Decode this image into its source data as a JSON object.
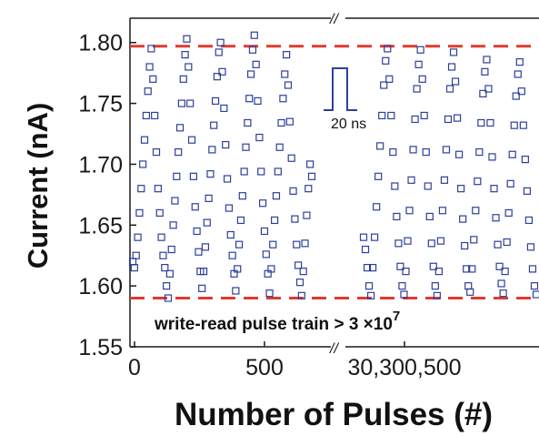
{
  "chart_data": {
    "type": "scatter",
    "xlabel": "Number of Pulses (#)",
    "ylabel": "Current  (nA)",
    "ylim": [
      1.55,
      1.82
    ],
    "yticks": [
      "1.55",
      "1.60",
      "1.65",
      "1.70",
      "1.75",
      "1.80"
    ],
    "xticks": [
      "0",
      "500",
      "30,300,500"
    ],
    "axis_break": "//",
    "series": [
      {
        "segment": "left",
        "x_range": [
          0,
          700
        ],
        "description_marker": "open square",
        "values": [
          1.62,
          1.615,
          1.625,
          1.64,
          1.66,
          1.68,
          1.7,
          1.72,
          1.74,
          1.76,
          1.78,
          1.795,
          1.77,
          1.74,
          1.71,
          1.68,
          1.66,
          1.64,
          1.625,
          1.615,
          1.6,
          1.59,
          1.61,
          1.63,
          1.65,
          1.67,
          1.69,
          1.71,
          1.73,
          1.75,
          1.77,
          1.79,
          1.803,
          1.78,
          1.75,
          1.72,
          1.69,
          1.665,
          1.645,
          1.628,
          1.612,
          1.598,
          1.612,
          1.632,
          1.652,
          1.672,
          1.692,
          1.712,
          1.732,
          1.752,
          1.772,
          1.792,
          1.8,
          1.776,
          1.746,
          1.716,
          1.688,
          1.664,
          1.642,
          1.625,
          1.61,
          1.596,
          1.614,
          1.634,
          1.654,
          1.674,
          1.694,
          1.714,
          1.734,
          1.754,
          1.774,
          1.794,
          1.806,
          1.782,
          1.752,
          1.722,
          1.694,
          1.668,
          1.645,
          1.626,
          1.61,
          1.594,
          1.614,
          1.634,
          1.654,
          1.674,
          1.694,
          1.714,
          1.734,
          1.754,
          1.774,
          1.79,
          1.765,
          1.735,
          1.705,
          1.678,
          1.655,
          1.634,
          1.617,
          1.603,
          1.592,
          1.612,
          1.635,
          1.658,
          1.68,
          1.7,
          1.69
        ]
      },
      {
        "segment": "right",
        "x_range": [
          30300000,
          30300900
        ],
        "description_marker": "open square",
        "values": [
          1.64,
          1.63,
          1.615,
          1.6,
          1.592,
          1.615,
          1.64,
          1.665,
          1.69,
          1.715,
          1.74,
          1.765,
          1.785,
          1.795,
          1.77,
          1.74,
          1.71,
          1.682,
          1.657,
          1.635,
          1.616,
          1.6,
          1.593,
          1.612,
          1.637,
          1.662,
          1.687,
          1.712,
          1.737,
          1.762,
          1.782,
          1.794,
          1.77,
          1.74,
          1.71,
          1.682,
          1.657,
          1.635,
          1.616,
          1.6,
          1.592,
          1.612,
          1.637,
          1.662,
          1.687,
          1.712,
          1.737,
          1.762,
          1.78,
          1.792,
          1.768,
          1.738,
          1.708,
          1.68,
          1.655,
          1.633,
          1.614,
          1.6,
          1.595,
          1.614,
          1.638,
          1.662,
          1.686,
          1.71,
          1.734,
          1.758,
          1.776,
          1.786,
          1.762,
          1.734,
          1.706,
          1.68,
          1.656,
          1.634,
          1.616,
          1.602,
          1.594,
          1.612,
          1.636,
          1.66,
          1.684,
          1.708,
          1.732,
          1.756,
          1.774,
          1.784,
          1.76,
          1.732,
          1.704,
          1.678,
          1.654,
          1.632,
          1.614,
          1.6,
          1.593
        ]
      }
    ],
    "reference_lines": [
      {
        "value": 1.797,
        "style": "dashed",
        "color": "#e03a2f"
      },
      {
        "value": 1.59,
        "style": "dashed",
        "color": "#e03a2f"
      }
    ],
    "annotations": {
      "pulse_width": "20 ns",
      "pulse_train": "write-read pulse train > 3 ×10",
      "pulse_train_exponent": "7"
    },
    "colors": {
      "marker": "#2d3f9e",
      "reference_line": "#e03a2f",
      "axis": "#1a1a1a"
    },
    "grid": false
  }
}
